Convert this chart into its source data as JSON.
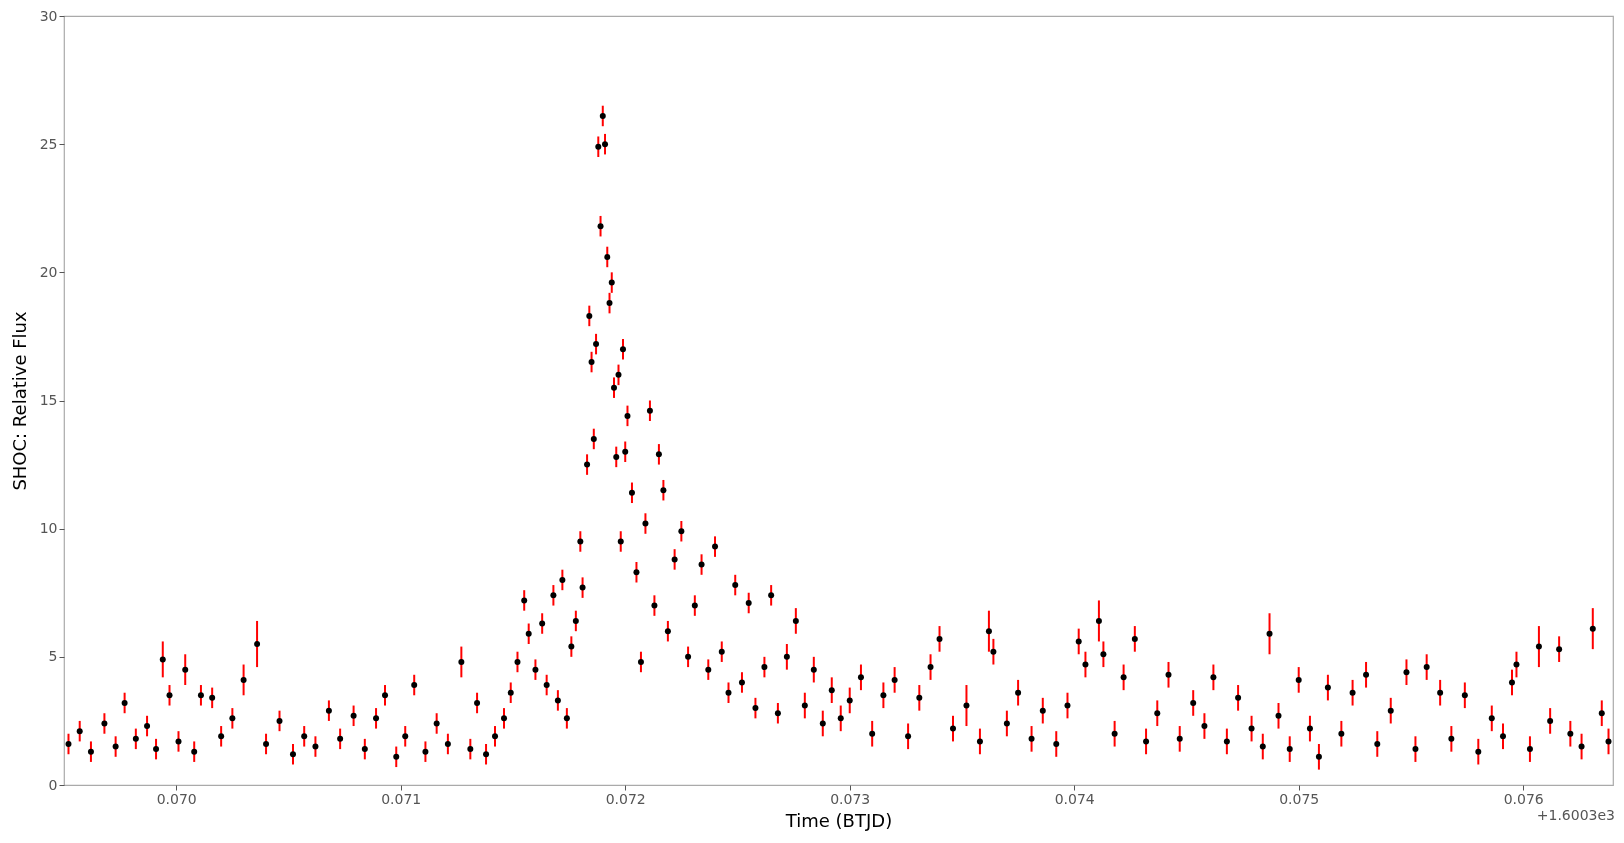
{
  "chart_data": {
    "type": "scatter",
    "xlabel": "Time (BTJD)",
    "ylabel": "SHOC: Relative Flux",
    "annotations": [
      "+1.6003e3"
    ],
    "xlim": [
      0.0695,
      0.0764
    ],
    "ylim": [
      0,
      30
    ],
    "xticks": [
      {
        "value": 0.07,
        "label": "0.070"
      },
      {
        "value": 0.071,
        "label": "0.071"
      },
      {
        "value": 0.072,
        "label": "0.072"
      },
      {
        "value": 0.073,
        "label": "0.073"
      },
      {
        "value": 0.074,
        "label": "0.074"
      },
      {
        "value": 0.075,
        "label": "0.075"
      },
      {
        "value": 0.076,
        "label": "0.076"
      }
    ],
    "yticks": [
      0,
      5,
      10,
      15,
      20,
      25,
      30
    ],
    "grid": false,
    "marker": "circle",
    "series": [
      {
        "color": "#000000",
        "x": [
          0.06952,
          0.06957,
          0.06962,
          0.06968,
          0.06973,
          0.06977,
          0.06982,
          0.06987,
          0.06991,
          0.06994,
          0.06997,
          0.07001,
          0.07004,
          0.07008,
          0.07011,
          0.07016,
          0.0702,
          0.07025,
          0.0703,
          0.07036,
          0.0704,
          0.07046,
          0.07052,
          0.07057,
          0.07062,
          0.07068,
          0.07073,
          0.07079,
          0.07084,
          0.07089,
          0.07093,
          0.07098,
          0.07102,
          0.07106,
          0.07111,
          0.07116,
          0.07121,
          0.07127,
          0.07131,
          0.07134,
          0.07138,
          0.07142,
          0.07146,
          0.07149,
          0.07152,
          0.07155,
          0.07157,
          0.0716,
          0.07163,
          0.07165,
          0.07168,
          0.0717,
          0.07172,
          0.07174,
          0.07176,
          0.07178,
          0.0718,
          0.07181,
          0.07183,
          0.07184,
          0.07185,
          0.07186,
          0.07187,
          0.07188,
          0.07189,
          0.0719,
          0.07191,
          0.07192,
          0.07193,
          0.07194,
          0.07195,
          0.07196,
          0.07197,
          0.07198,
          0.07199,
          0.072,
          0.07201,
          0.07203,
          0.07205,
          0.07207,
          0.07209,
          0.07211,
          0.07213,
          0.07215,
          0.07217,
          0.07219,
          0.07222,
          0.07225,
          0.07228,
          0.07231,
          0.07234,
          0.07237,
          0.0724,
          0.07243,
          0.07246,
          0.07249,
          0.07252,
          0.07255,
          0.07258,
          0.07262,
          0.07265,
          0.07268,
          0.07272,
          0.07276,
          0.0728,
          0.07284,
          0.07288,
          0.07292,
          0.07296,
          0.073,
          0.07305,
          0.0731,
          0.07315,
          0.0732,
          0.07326,
          0.07331,
          0.07336,
          0.0734,
          0.07346,
          0.07352,
          0.07358,
          0.07362,
          0.07364,
          0.0737,
          0.07375,
          0.07381,
          0.07386,
          0.07392,
          0.07397,
          0.07402,
          0.07405,
          0.07411,
          0.07413,
          0.07418,
          0.07422,
          0.07427,
          0.07432,
          0.07437,
          0.07442,
          0.07447,
          0.07453,
          0.07458,
          0.07462,
          0.07468,
          0.07473,
          0.07479,
          0.07484,
          0.07487,
          0.07491,
          0.07496,
          0.075,
          0.07505,
          0.07509,
          0.07513,
          0.07519,
          0.07524,
          0.0753,
          0.07535,
          0.07541,
          0.07548,
          0.07552,
          0.07557,
          0.07563,
          0.07568,
          0.07574,
          0.0758,
          0.07586,
          0.07591,
          0.07595,
          0.07597,
          0.07603,
          0.07607,
          0.07612,
          0.07616,
          0.07621,
          0.07626,
          0.07631,
          0.07635,
          0.07638
        ],
        "values": [
          1.6,
          2.1,
          1.3,
          2.4,
          1.5,
          3.2,
          1.8,
          2.3,
          1.4,
          4.9,
          3.5,
          1.7,
          4.5,
          1.3,
          3.5,
          3.4,
          1.9,
          2.6,
          4.1,
          5.5,
          1.6,
          2.5,
          1.2,
          1.9,
          1.5,
          2.9,
          1.8,
          2.7,
          1.4,
          2.6,
          3.5,
          1.1,
          1.9,
          3.9,
          1.3,
          2.4,
          1.6,
          4.8,
          1.4,
          3.2,
          1.2,
          1.9,
          2.6,
          3.6,
          4.8,
          7.2,
          5.9,
          4.5,
          6.3,
          3.9,
          7.4,
          3.3,
          8.0,
          2.6,
          5.4,
          6.4,
          9.5,
          7.7,
          12.5,
          18.3,
          16.5,
          13.5,
          17.2,
          24.9,
          21.8,
          26.1,
          25.0,
          20.6,
          18.8,
          19.6,
          15.5,
          12.8,
          16.0,
          9.5,
          17.0,
          13.0,
          14.4,
          11.4,
          8.3,
          4.8,
          10.2,
          14.6,
          7.0,
          12.9,
          11.5,
          6.0,
          8.8,
          9.9,
          5.0,
          7.0,
          8.6,
          4.5,
          9.3,
          5.2,
          3.6,
          7.8,
          4.0,
          7.1,
          3.0,
          4.6,
          7.4,
          2.8,
          5.0,
          6.4,
          3.1,
          4.5,
          2.4,
          3.7,
          2.6,
          3.3,
          4.2,
          2.0,
          3.5,
          4.1,
          1.9,
          3.4,
          4.6,
          5.7,
          2.2,
          3.1,
          1.7,
          6.0,
          5.2,
          2.4,
          3.6,
          1.8,
          2.9,
          1.6,
          3.1,
          5.6,
          4.7,
          6.4,
          5.1,
          2.0,
          4.2,
          5.7,
          1.7,
          2.8,
          4.3,
          1.8,
          3.2,
          2.3,
          4.2,
          1.7,
          3.4,
          2.2,
          1.5,
          5.9,
          2.7,
          1.4,
          4.1,
          2.2,
          1.1,
          3.8,
          2.0,
          3.6,
          4.3,
          1.6,
          2.9,
          4.4,
          1.4,
          4.6,
          3.6,
          1.8,
          3.5,
          1.3,
          2.6,
          1.9,
          4.0,
          4.7,
          1.4,
          5.4,
          2.5,
          5.3,
          2.0,
          1.5,
          6.1,
          2.8,
          1.7
        ],
        "errors": [
          0.4,
          0.4,
          0.4,
          0.4,
          0.4,
          0.4,
          0.4,
          0.4,
          0.4,
          0.7,
          0.4,
          0.4,
          0.6,
          0.4,
          0.4,
          0.4,
          0.4,
          0.4,
          0.6,
          0.9,
          0.4,
          0.4,
          0.4,
          0.4,
          0.4,
          0.4,
          0.4,
          0.4,
          0.4,
          0.4,
          0.4,
          0.4,
          0.4,
          0.4,
          0.4,
          0.4,
          0.4,
          0.6,
          0.4,
          0.4,
          0.4,
          0.4,
          0.4,
          0.4,
          0.4,
          0.4,
          0.4,
          0.4,
          0.4,
          0.4,
          0.4,
          0.4,
          0.4,
          0.4,
          0.4,
          0.4,
          0.4,
          0.4,
          0.4,
          0.4,
          0.4,
          0.4,
          0.4,
          0.4,
          0.4,
          0.4,
          0.4,
          0.4,
          0.4,
          0.4,
          0.4,
          0.4,
          0.4,
          0.4,
          0.4,
          0.4,
          0.4,
          0.4,
          0.4,
          0.4,
          0.4,
          0.4,
          0.4,
          0.4,
          0.4,
          0.4,
          0.4,
          0.4,
          0.4,
          0.4,
          0.4,
          0.4,
          0.4,
          0.4,
          0.4,
          0.4,
          0.4,
          0.4,
          0.4,
          0.4,
          0.4,
          0.4,
          0.5,
          0.5,
          0.5,
          0.5,
          0.5,
          0.5,
          0.5,
          0.5,
          0.5,
          0.5,
          0.5,
          0.5,
          0.5,
          0.5,
          0.5,
          0.5,
          0.5,
          0.8,
          0.5,
          0.8,
          0.5,
          0.5,
          0.5,
          0.5,
          0.5,
          0.5,
          0.5,
          0.5,
          0.5,
          0.8,
          0.5,
          0.5,
          0.5,
          0.5,
          0.5,
          0.5,
          0.5,
          0.5,
          0.5,
          0.5,
          0.5,
          0.5,
          0.5,
          0.5,
          0.5,
          0.8,
          0.5,
          0.5,
          0.5,
          0.5,
          0.5,
          0.5,
          0.5,
          0.5,
          0.5,
          0.5,
          0.5,
          0.5,
          0.5,
          0.5,
          0.5,
          0.5,
          0.5,
          0.5,
          0.5,
          0.5,
          0.5,
          0.5,
          0.5,
          0.8,
          0.5,
          0.5,
          0.5,
          0.5,
          0.8,
          0.5,
          0.5
        ]
      }
    ]
  }
}
